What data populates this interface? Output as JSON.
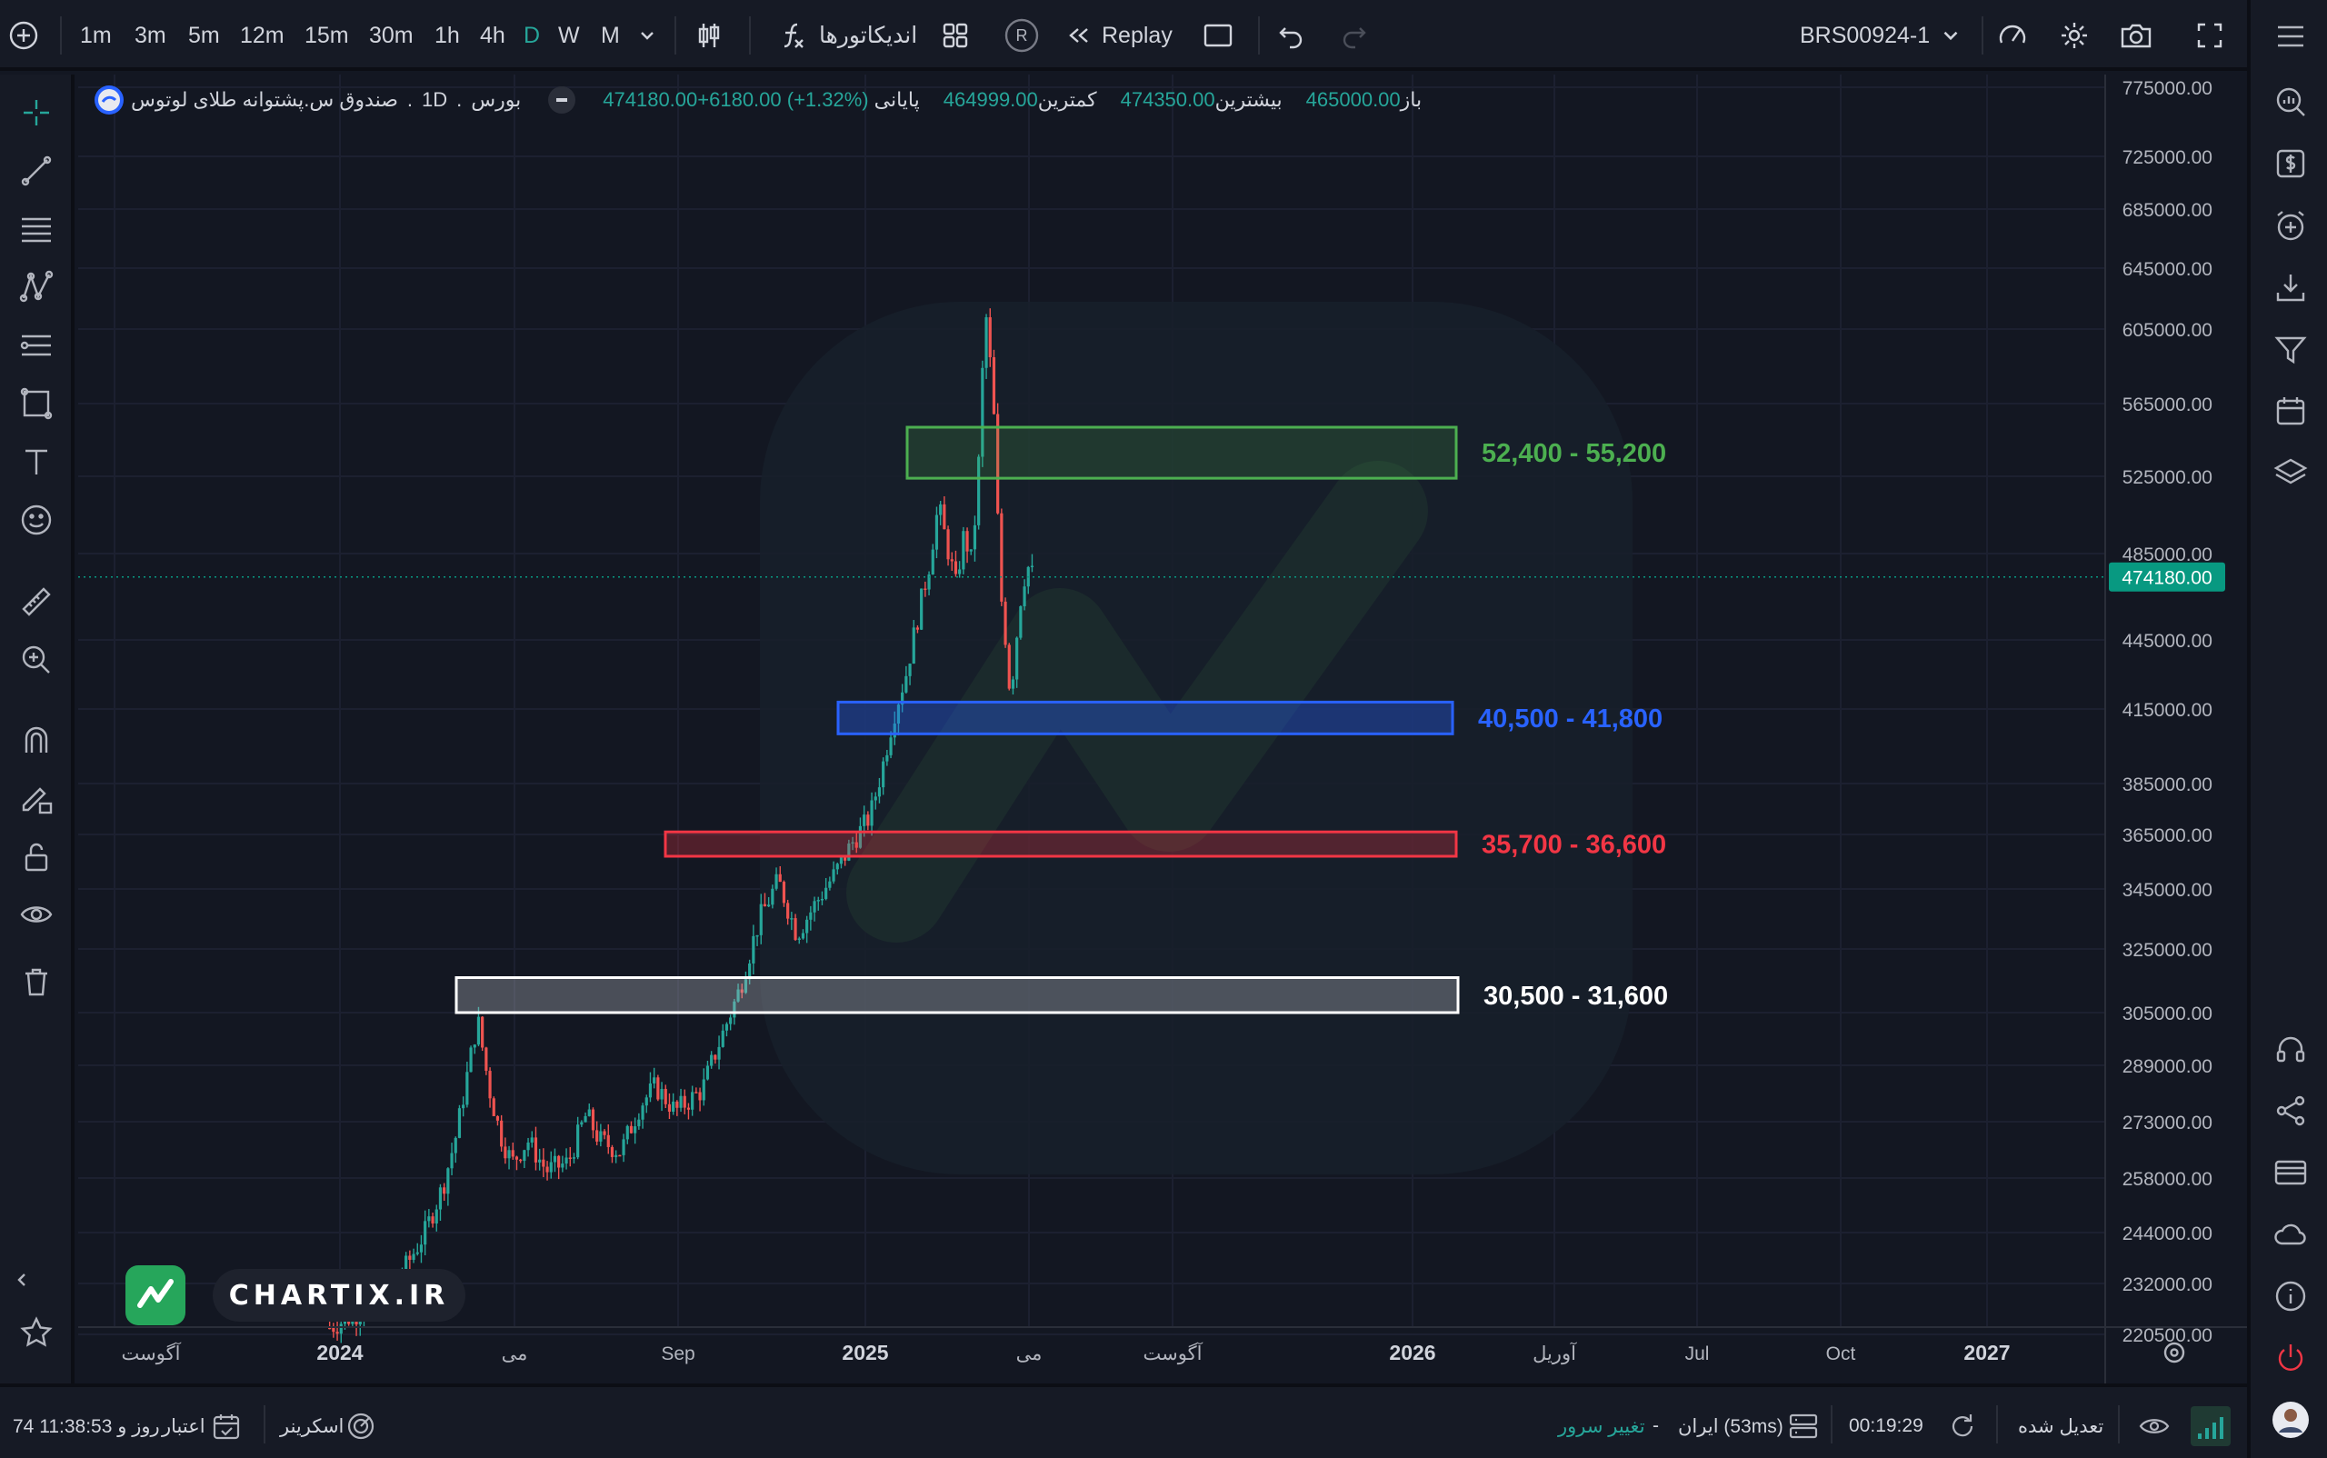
{
  "toolbar": {
    "timeframes": [
      "1m",
      "3m",
      "5m",
      "12m",
      "15m",
      "30m",
      "1h",
      "4h",
      "D",
      "W",
      "M"
    ],
    "active_timeframe": "D",
    "indicators_label": "اندیکاتورها",
    "replay_label": "Replay",
    "symbol": "BRS00924-1",
    "r_badge": "R"
  },
  "legend": {
    "instrument": "صندوق س.پشتوانه طلای لوتوس",
    "timeframe": "1D",
    "exchange": "بورس",
    "open_label": "باز",
    "open_value": "465000.00",
    "high_label": "بیشترین",
    "high_value": "474350.00",
    "low_label": "کمترین",
    "low_value": "464999.00",
    "close_label": "پایانی",
    "close_value": "474180.00",
    "change": "+6180.00 (+1.32%)"
  },
  "chart_data": {
    "type": "candlestick",
    "y_axis_ticks": [
      "775000.00",
      "725000.00",
      "685000.00",
      "645000.00",
      "605000.00",
      "565000.00",
      "525000.00",
      "485000.00",
      "445000.00",
      "415000.00",
      "385000.00",
      "365000.00",
      "345000.00",
      "325000.00",
      "305000.00",
      "289000.00",
      "273000.00",
      "258000.00",
      "244000.00",
      "232000.00",
      "220500.00"
    ],
    "x_axis_ticks": [
      "آگوست",
      "2024",
      "می",
      "Sep",
      "2025",
      "می",
      "آگوست",
      "2026",
      "آوریل",
      "Jul",
      "Oct",
      "2027"
    ],
    "last_price": "474180.00",
    "zones": [
      {
        "label": "52,400 - 55,200",
        "low": 524000,
        "high": 552000,
        "color": "#4caf50"
      },
      {
        "label": "40,500 - 41,800",
        "low": 405000,
        "high": 418000,
        "color": "#2962ff"
      },
      {
        "label": "35,700 - 36,600",
        "low": 357000,
        "high": 366000,
        "color": "#f23645"
      },
      {
        "label": "30,500 - 31,600",
        "low": 305000,
        "high": 316000,
        "color": "#ffffff"
      }
    ],
    "price_path": [
      {
        "date": "2023-12-25",
        "close": 222000
      },
      {
        "date": "2024-01-20",
        "close": 226000
      },
      {
        "date": "2024-02-20",
        "close": 234000
      },
      {
        "date": "2024-03-10",
        "close": 244000
      },
      {
        "date": "2024-03-25",
        "close": 256000
      },
      {
        "date": "2024-04-05",
        "close": 270000
      },
      {
        "date": "2024-04-15",
        "close": 289000
      },
      {
        "date": "2024-04-22",
        "close": 303000
      },
      {
        "date": "2024-05-01",
        "close": 283000
      },
      {
        "date": "2024-05-10",
        "close": 270000
      },
      {
        "date": "2024-05-20",
        "close": 262000
      },
      {
        "date": "2024-06-01",
        "close": 268000
      },
      {
        "date": "2024-06-15",
        "close": 260000
      },
      {
        "date": "2024-07-01",
        "close": 262000
      },
      {
        "date": "2024-07-15",
        "close": 275000
      },
      {
        "date": "2024-07-25",
        "close": 268000
      },
      {
        "date": "2024-08-10",
        "close": 265000
      },
      {
        "date": "2024-08-25",
        "close": 278000
      },
      {
        "date": "2024-09-05",
        "close": 283000
      },
      {
        "date": "2024-09-20",
        "close": 276000
      },
      {
        "date": "2024-10-05",
        "close": 282000
      },
      {
        "date": "2024-10-15",
        "close": 297000
      },
      {
        "date": "2024-10-25",
        "close": 312000
      },
      {
        "date": "2024-11-05",
        "close": 335000
      },
      {
        "date": "2024-11-15",
        "close": 348000
      },
      {
        "date": "2024-11-25",
        "close": 330000
      },
      {
        "date": "2024-12-05",
        "close": 340000
      },
      {
        "date": "2024-12-15",
        "close": 350000
      },
      {
        "date": "2024-12-25",
        "close": 362000
      },
      {
        "date": "2025-01-05",
        "close": 372000
      },
      {
        "date": "2025-01-15",
        "close": 390000
      },
      {
        "date": "2025-01-25",
        "close": 412000
      },
      {
        "date": "2025-02-05",
        "close": 430000
      },
      {
        "date": "2025-02-15",
        "close": 455000
      },
      {
        "date": "2025-02-25",
        "close": 480000
      },
      {
        "date": "2025-03-05",
        "close": 510000
      },
      {
        "date": "2025-03-12",
        "close": 490000
      },
      {
        "date": "2025-03-20",
        "close": 470000
      },
      {
        "date": "2025-03-27",
        "close": 495000
      },
      {
        "date": "2025-04-03",
        "close": 480000
      },
      {
        "date": "2025-04-10",
        "close": 545000
      },
      {
        "date": "2025-04-14",
        "close": 620000
      },
      {
        "date": "2025-04-17",
        "close": 600000
      },
      {
        "date": "2025-04-22",
        "close": 555000
      },
      {
        "date": "2025-04-27",
        "close": 470000
      },
      {
        "date": "2025-05-02",
        "close": 445000
      },
      {
        "date": "2025-05-06",
        "close": 420000
      },
      {
        "date": "2025-05-10",
        "close": 440000
      },
      {
        "date": "2025-05-15",
        "close": 465000
      },
      {
        "date": "2025-05-20",
        "close": 480000
      },
      {
        "date": "2025-05-25",
        "close": 474180
      }
    ]
  },
  "watermark": {
    "label": "CHARTIX.IR"
  },
  "status_bar": {
    "credit_label": "اعتبار",
    "credit_value": "74 روز و 11:38:53",
    "screener_label": "اسکرینر",
    "server_change_label": "تغییر سرور",
    "dash": "-",
    "server_name": "ایران (53ms)",
    "clock": "00:19:29",
    "adjusted_label": "تعدیل شده"
  },
  "colors": {
    "up": "#26a69a",
    "down": "#ef5350",
    "background": "#131722",
    "price_label": "#089981"
  }
}
